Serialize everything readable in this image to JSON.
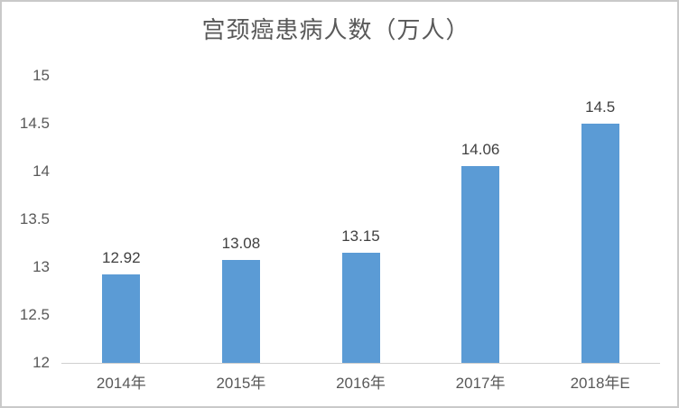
{
  "window": {
    "background": "#ffffff",
    "frame_border_color": "#c9c9c9"
  },
  "chart_data": {
    "type": "bar",
    "title": "宫颈癌患病人数（万人）",
    "categories": [
      "2014年",
      "2015年",
      "2016年",
      "2017年",
      "2018年E"
    ],
    "values": [
      12.92,
      13.08,
      13.15,
      14.06,
      14.5
    ],
    "value_labels": [
      "12.92",
      "13.08",
      "13.15",
      "14.06",
      "14.5"
    ],
    "xlabel": "",
    "ylabel": "",
    "ylim": [
      12,
      15
    ],
    "yticks": [
      12,
      12.5,
      13,
      13.5,
      14,
      14.5,
      15
    ],
    "grid": false,
    "legend_position": "none",
    "bar_color": "#5b9bd5",
    "title_color": "#595959",
    "value_label_color": "#404040",
    "tick_label_color": "#595959",
    "axis_line_color": "#cfcfcf"
  }
}
